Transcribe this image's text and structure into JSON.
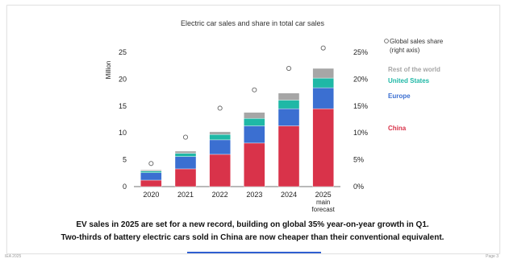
{
  "chart_data": {
    "type": "bar",
    "stacked": true,
    "title": "Electric car sales and share in total car sales",
    "ylabel": "Million",
    "ylim": [
      0,
      25
    ],
    "y_ticks": [
      "0",
      "5",
      "10",
      "15",
      "20",
      "25"
    ],
    "y2lim": [
      0,
      25
    ],
    "y2_ticks": [
      "0%",
      "5%",
      "10%",
      "15%",
      "20%",
      "25%"
    ],
    "categories": [
      "2020",
      "2021",
      "2022",
      "2023",
      "2024",
      "2025 main forecast"
    ],
    "category_lines": [
      [
        "2020"
      ],
      [
        "2021"
      ],
      [
        "2022"
      ],
      [
        "2023"
      ],
      [
        "2024"
      ],
      [
        "2025",
        "main",
        "forecast"
      ]
    ],
    "series": [
      {
        "name": "China",
        "color": "#d9334a",
        "values": [
          1.2,
          3.3,
          6.0,
          8.1,
          11.3,
          14.5
        ]
      },
      {
        "name": "Europe",
        "color": "#3b6fd1",
        "values": [
          1.4,
          2.3,
          2.7,
          3.2,
          3.2,
          3.9
        ]
      },
      {
        "name": "United States",
        "color": "#1fb8a6",
        "values": [
          0.3,
          0.6,
          1.0,
          1.4,
          1.6,
          1.8
        ]
      },
      {
        "name": "Rest of the world",
        "color": "#a6a6a6",
        "values": [
          0.2,
          0.4,
          0.5,
          1.1,
          1.3,
          1.8
        ]
      }
    ],
    "share_series": {
      "name": "Global sales share (right axis)",
      "axis": "right",
      "values": [
        4.3,
        9.2,
        14.6,
        18.0,
        22.0,
        25.8
      ]
    },
    "legend": {
      "placement": "right",
      "share_label": "Global sales share",
      "share_sublabel": "(right axis)",
      "entries": [
        {
          "label": "Rest of the world",
          "color": "#a6a6a6"
        },
        {
          "label": "United States",
          "color": "#1fb8a6"
        },
        {
          "label": "Europe",
          "color": "#3b6fd1"
        },
        {
          "label": "China",
          "color": "#d9334a"
        }
      ]
    },
    "grid": false
  },
  "caption": {
    "line1": "EV sales in 2025 are set for a new record, building on global 35% year-on-year growth in Q1.",
    "line2": "Two-thirds of battery electric cars sold in China are now cheaper than their conventional equivalent."
  },
  "footer": {
    "left": "IEA 2025",
    "right": "Page 3"
  }
}
